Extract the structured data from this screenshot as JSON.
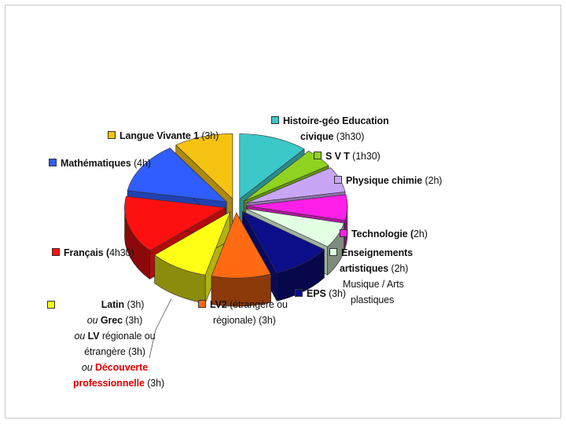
{
  "chart_data": {
    "type": "pie",
    "title": "",
    "unit": "h",
    "slices": [
      {
        "label": "Histoire-géo Education civique",
        "hours": "(3h30)",
        "value": 3.5,
        "color": "#3cc8c8"
      },
      {
        "label": "S V T",
        "hours": "(1h30)",
        "value": 1.5,
        "color": "#8fd21f"
      },
      {
        "label": "Physique chimie",
        "hours": "(2h)",
        "value": 2,
        "color": "#c9a6f5"
      },
      {
        "label": "Technologie",
        "hours": "(2h)",
        "value": 2,
        "color": "#ff1fe8"
      },
      {
        "label": "Enseignements artistiques",
        "hours": "(2h)",
        "value": 2,
        "color": "#e3ffe3"
      },
      {
        "label": "EPS",
        "hours": "(3h)",
        "value": 3,
        "color": "#0c0d88"
      },
      {
        "label": "LV2",
        "hours": "(étrangère ou régionale) (3h)",
        "value": 3,
        "color": "#ff6a12"
      },
      {
        "label": "Latin",
        "hours": "(3h)",
        "value": 3,
        "color": "#ffff16"
      },
      {
        "label": "Français",
        "hours": "(4h30)",
        "value": 4.5,
        "color": "#ff1010"
      },
      {
        "label": "Mathématiques",
        "hours": "(4h)",
        "value": 4,
        "color": "#2f5dff"
      },
      {
        "label": "Langue Vivante 1",
        "hours": "(3h)",
        "value": 3,
        "color": "#f7c312"
      }
    ]
  },
  "labels": {
    "hg1": "Histoire-géo Education",
    "hg2": "civique",
    "hg_h": "(3h30)",
    "svt": "S V T",
    "svt_h": "(1h30)",
    "pc": "Physique chimie",
    "pc_h": "(2h)",
    "tech": "Technologie (",
    "tech_h": "2h)",
    "ea1": "Enseignements",
    "ea2": "artistiques",
    "ea_h": "(2h)",
    "ea3": "Musique  / Arts",
    "ea4": "plastiques",
    "eps": "EPS",
    "eps_h": "(3h)",
    "lv2": "LV2",
    "lv2_rest": "(étrangère ou",
    "lv2_2": "régionale) (3h)",
    "latin": "Latin",
    "latin_h": "(3h)",
    "ou": "ou",
    "grec": "Grec",
    "grec_h": "(3h)",
    "lv": "LV",
    "lv_rest": "régionale ou",
    "lv_2": "étrangère (3h)",
    "dp1": "Découverte",
    "dp2": "professionnelle",
    "dp_h": "(3h)",
    "fr": "Français (",
    "fr_h": "4h30)",
    "math": "Mathématiques",
    "math_h": "(4h)",
    "lv1": "Langue Vivante 1",
    "lv1_h": "(3h)"
  }
}
